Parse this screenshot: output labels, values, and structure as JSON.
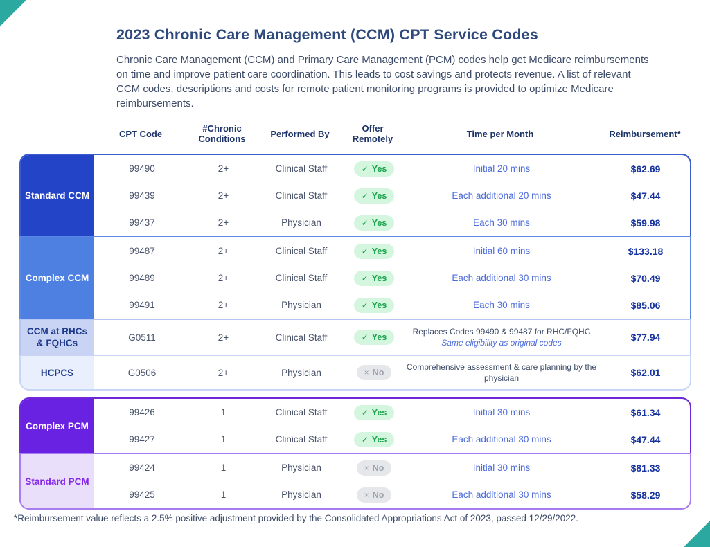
{
  "page": {
    "title": "2023 Chronic Care Management (CCM) CPT Service Codes",
    "intro": "Chronic Care Management (CCM) and Primary Care Management (PCM) codes help get Medicare reimbursements on time and improve patient care coordination. This leads to cost savings and protects revenue. A list of relevant CCM codes, descriptions and costs for remote patient monitoring programs is provided to optimize Medicare reimbursements.",
    "footnote": "*Reimbursement value reflects a 2.5% positive adjustment provided by the Consolidated Appropriations Act of 2023, passed 12/29/2022."
  },
  "colors": {
    "corner_accent": "#2ba9a1",
    "title_text": "#2e4a7d",
    "body_text": "#3c4b68",
    "time_blue": "#4d6cdb",
    "price_navy": "#16339f",
    "yes_bg": "#d4f6de",
    "yes_text": "#18a34b",
    "no_bg": "#e5e7ea",
    "no_text": "#9ca3af"
  },
  "table": {
    "headers": [
      "CPT Code",
      "#Chronic Conditions",
      "Performed By",
      "Offer Remotely",
      "Time per Month",
      "Reimbursement*"
    ]
  },
  "tables": {
    "ccm": {
      "groups": [
        {
          "id": "standard-ccm",
          "label": "Standard CCM",
          "colors": {
            "border": "#3a5ccd",
            "label_bg": "#2444c7",
            "label_text": "#ffffff"
          },
          "rows": [
            {
              "code": "99490",
              "conditions": "2+",
              "performed": "Clinical Staff",
              "offer_remotely": "Yes",
              "time": "Initial 20 mins",
              "price": "$62.69"
            },
            {
              "code": "99439",
              "conditions": "2+",
              "performed": "Clinical Staff",
              "offer_remotely": "Yes",
              "time": "Each additional 20 mins",
              "price": "$47.44"
            },
            {
              "code": "99437",
              "conditions": "2+",
              "performed": "Physician",
              "offer_remotely": "Yes",
              "time": "Each 30 mins",
              "price": "$59.98"
            }
          ]
        },
        {
          "id": "complex-ccm",
          "label": "Complex CCM",
          "colors": {
            "border": "#5b87e5",
            "label_bg": "#4e80e1",
            "label_text": "#ffffff"
          },
          "rows": [
            {
              "code": "99487",
              "conditions": "2+",
              "performed": "Clinical Staff",
              "offer_remotely": "Yes",
              "time": "Initial 60 mins",
              "price": "$133.18"
            },
            {
              "code": "99489",
              "conditions": "2+",
              "performed": "Clinical Staff",
              "offer_remotely": "Yes",
              "time": "Each additional 30 mins",
              "price": "$70.49"
            },
            {
              "code": "99491",
              "conditions": "2+",
              "performed": "Physician",
              "offer_remotely": "Yes",
              "time": "Each 30 mins",
              "price": "$85.06"
            }
          ]
        },
        {
          "id": "rhc",
          "label": "CCM at RHCs & FQHCs",
          "colors": {
            "border": "#b7c6f2",
            "label_bg": "#c9d4f4",
            "label_text": "#1e3a8a"
          },
          "rows": [
            {
              "code": "G0511",
              "conditions": "2+",
              "performed": "Clinical Staff",
              "offer_remotely": "Yes",
              "time_main": "Replaces Codes 99490 & 99487 for RHC/FQHC",
              "time_sub": "Same eligibility as original codes",
              "price": "$77.94"
            }
          ]
        },
        {
          "id": "hcpcs",
          "label": "HCPCS",
          "colors": {
            "border": "#c9d5f5",
            "label_bg": "#e9effc",
            "label_text": "#1e3a8a"
          },
          "rows": [
            {
              "code": "G0506",
              "conditions": "2+",
              "performed": "Physician",
              "offer_remotely": "No",
              "time_main": "Comprehensive assessment & care planning by the physician",
              "price": "$62.01"
            }
          ]
        }
      ]
    },
    "pcm": {
      "groups": [
        {
          "id": "complex-pcm",
          "label": "Complex PCM",
          "colors": {
            "border": "#6d28d9",
            "label_bg": "#6a22e2",
            "label_text": "#ffffff"
          },
          "rows": [
            {
              "code": "99426",
              "conditions": "1",
              "performed": "Clinical Staff",
              "offer_remotely": "Yes",
              "time": "Initial 30 mins",
              "price": "$61.34"
            },
            {
              "code": "99427",
              "conditions": "1",
              "performed": "Clinical Staff",
              "offer_remotely": "Yes",
              "time": "Each additional 30 mins",
              "price": "$47.44"
            }
          ]
        },
        {
          "id": "standard-pcm",
          "label": "Standard PCM",
          "colors": {
            "border": "#a87bf0",
            "label_bg": "#eadffa",
            "label_text": "#8429e8"
          },
          "rows": [
            {
              "code": "99424",
              "conditions": "1",
              "performed": "Physician",
              "offer_remotely": "No",
              "time": "Initial 30 mins",
              "price": "$81.33"
            },
            {
              "code": "99425",
              "conditions": "1",
              "performed": "Physician",
              "offer_remotely": "No",
              "time": "Each additional 30 mins",
              "price": "$58.29"
            }
          ]
        }
      ]
    }
  },
  "badges": {
    "yes_label": "Yes",
    "no_label": "No",
    "check_glyph": "✓",
    "x_glyph": "×"
  }
}
